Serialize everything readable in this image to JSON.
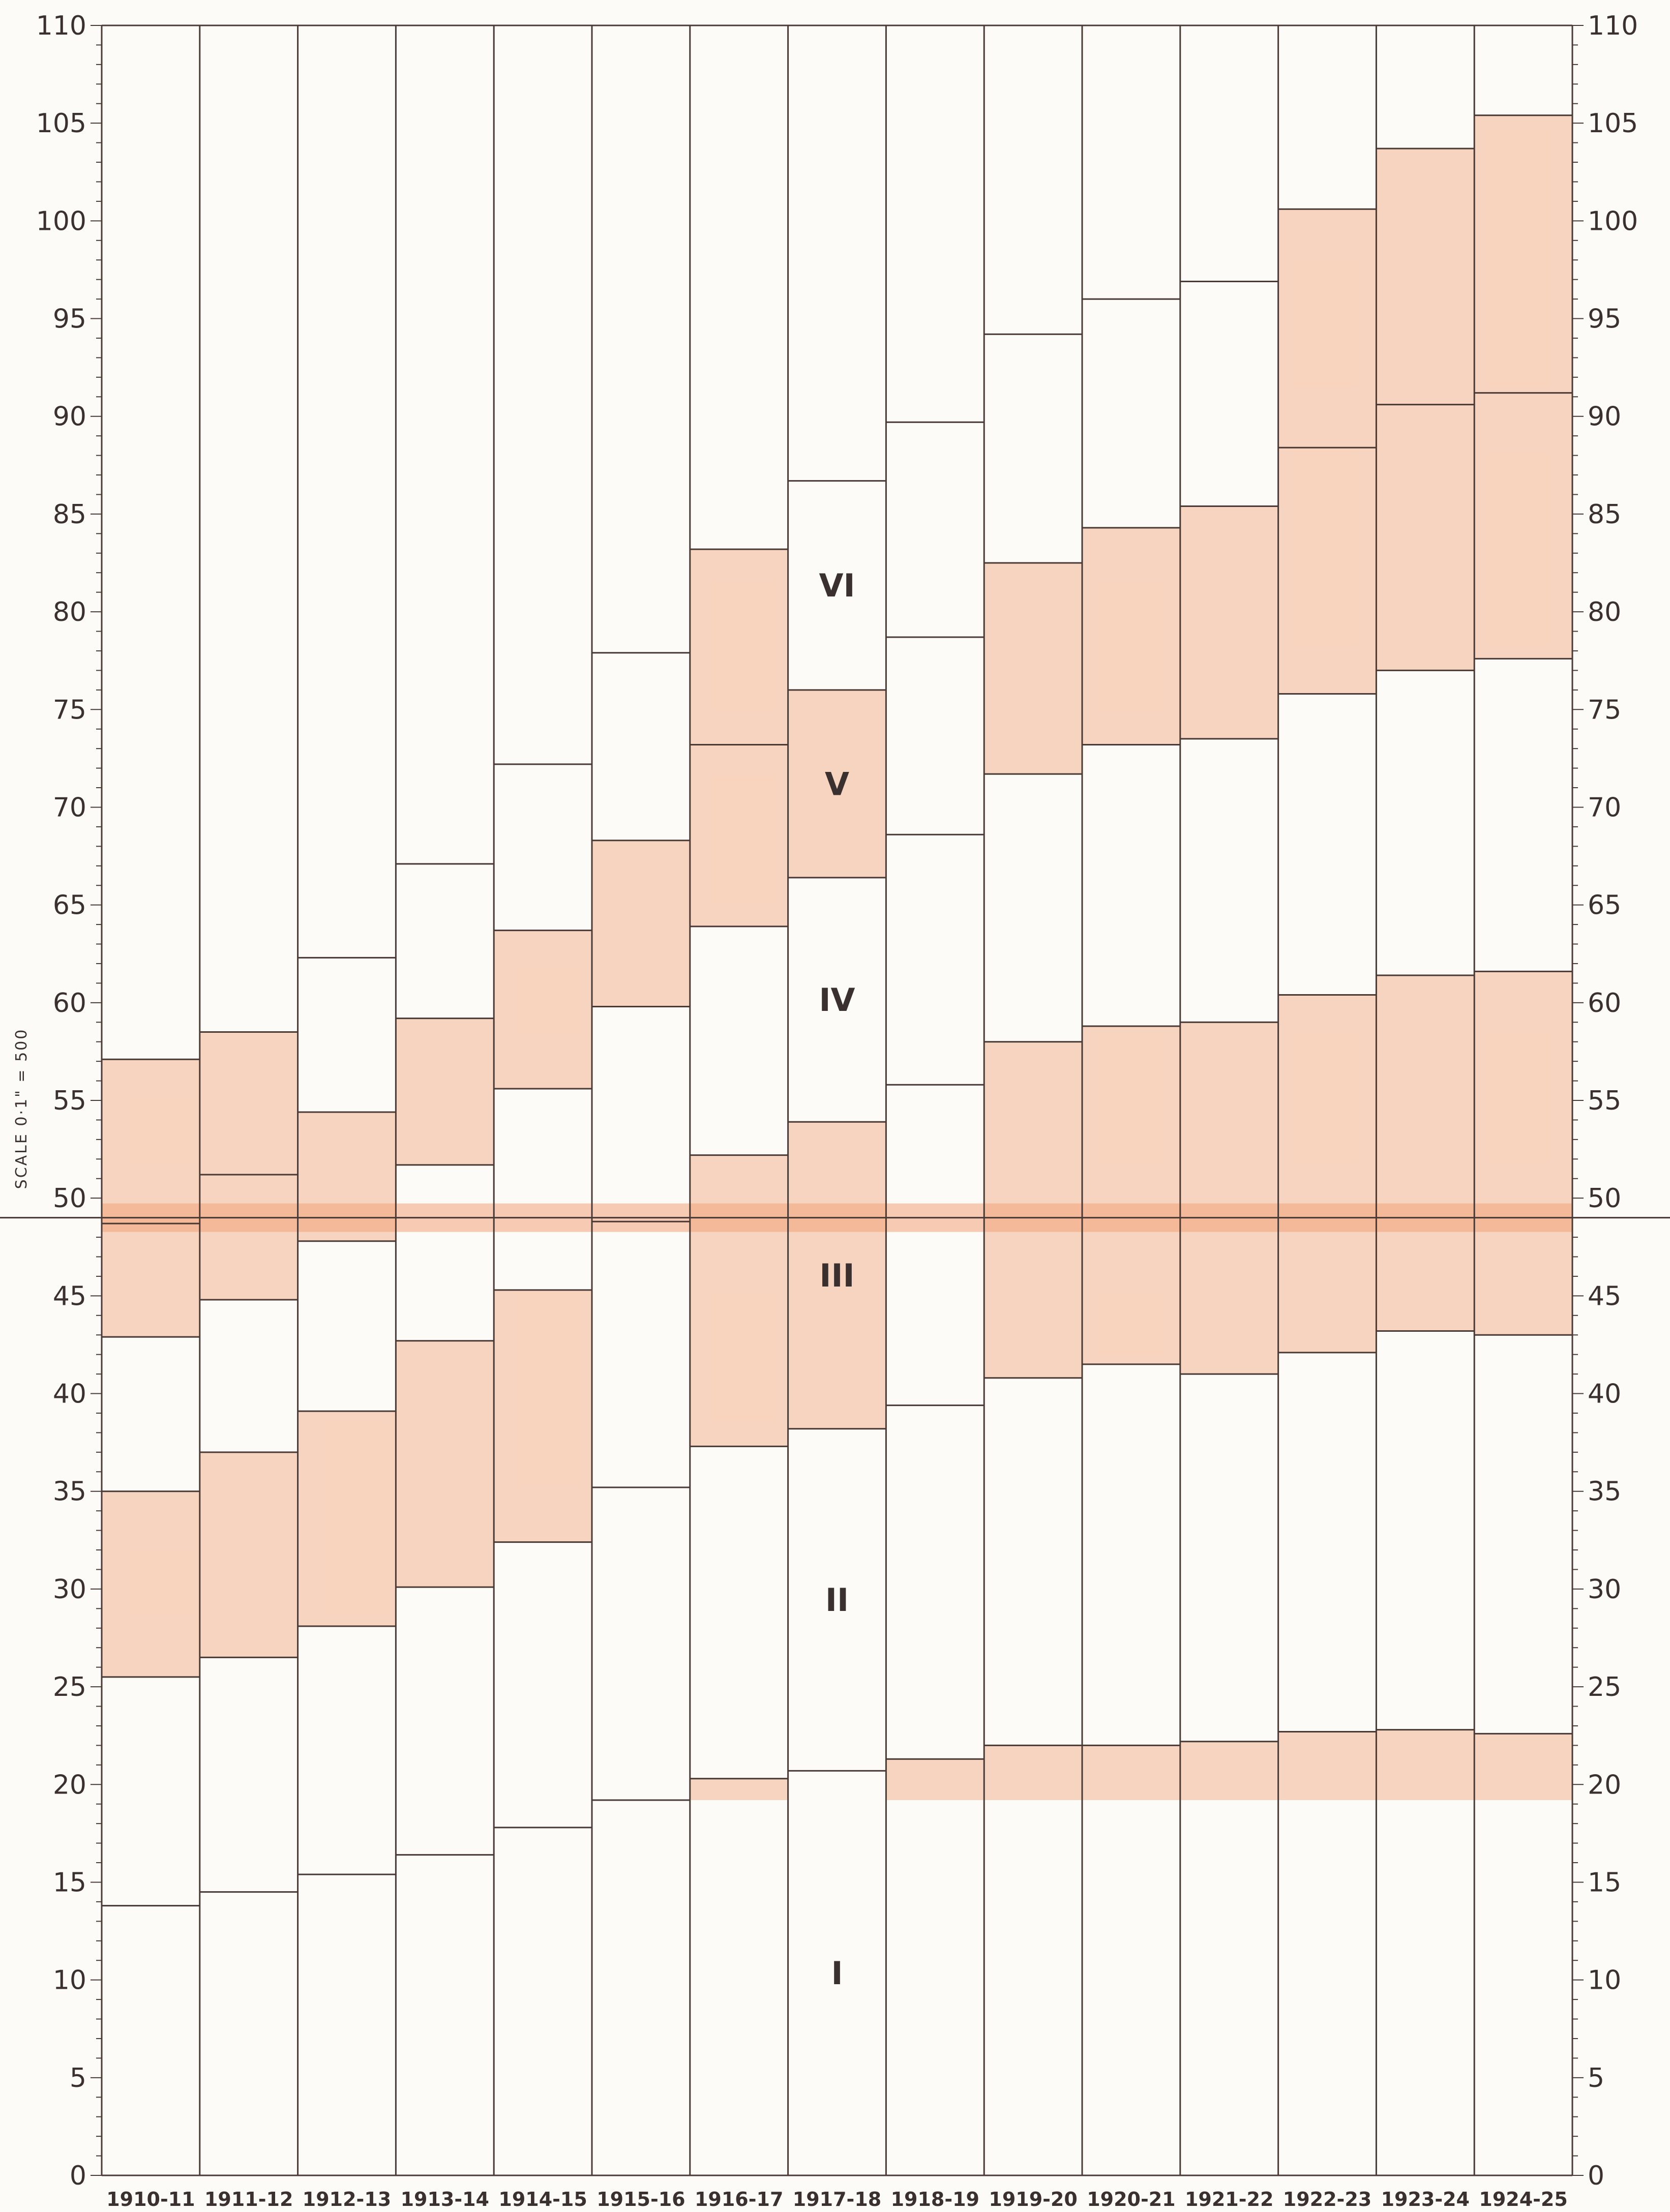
{
  "chart_data": {
    "type": "bar",
    "stacked": true,
    "title": "",
    "xlabel": "",
    "ylabel": "",
    "scale_note": "SCALE 0·1\" = 500",
    "ylim": [
      0,
      110
    ],
    "yticks": [
      0,
      5,
      10,
      15,
      20,
      25,
      30,
      35,
      40,
      45,
      50,
      55,
      60,
      65,
      70,
      75,
      80,
      85,
      90,
      95,
      100,
      105,
      110
    ],
    "ytick_labels": [
      "0",
      "5",
      "10",
      "15",
      "20",
      "25",
      "30",
      "35",
      "40",
      "45",
      "50",
      "55",
      "60",
      "65",
      "70",
      "75",
      "80",
      "85",
      "90",
      "95",
      "100",
      "105",
      "110"
    ],
    "grid": false,
    "categories": [
      "1910-11",
      "1911-12",
      "1912-13",
      "1913-14",
      "1914-15",
      "1915-16",
      "1916-17",
      "1917-18",
      "1918-19",
      "1919-20",
      "1920-21",
      "1921-22",
      "1922-23",
      "1923-24",
      "1924-25"
    ],
    "group_labels": [
      "I",
      "II",
      "III",
      "IV",
      "V",
      "VI"
    ],
    "boundaries": [
      [
        13.8,
        25.5,
        35.0,
        42.9,
        48.7,
        57.1
      ],
      [
        14.5,
        26.5,
        37.0,
        44.8,
        51.2,
        58.5
      ],
      [
        15.4,
        28.1,
        39.1,
        47.8,
        54.4,
        62.3
      ],
      [
        16.4,
        30.1,
        42.7,
        51.7,
        59.2,
        67.1
      ],
      [
        17.8,
        32.4,
        45.3,
        55.6,
        63.7,
        72.2
      ],
      [
        19.2,
        35.2,
        48.8,
        59.8,
        68.3,
        77.9
      ],
      [
        20.3,
        37.3,
        52.2,
        63.9,
        73.2,
        83.2
      ],
      [
        20.7,
        38.2,
        53.9,
        66.4,
        76.0,
        86.7
      ],
      [
        21.3,
        39.4,
        55.8,
        68.6,
        78.7,
        89.7
      ],
      [
        22.0,
        40.8,
        58.0,
        71.7,
        82.5,
        94.2
      ],
      [
        22.0,
        41.5,
        58.8,
        73.2,
        84.3,
        96.0
      ],
      [
        22.2,
        41.0,
        59.0,
        73.5,
        85.4,
        96.9
      ],
      [
        22.7,
        42.1,
        60.4,
        75.8,
        88.4,
        100.6
      ],
      [
        22.8,
        43.2,
        61.4,
        77.0,
        90.6,
        103.7
      ],
      [
        22.6,
        43.0,
        61.6,
        77.6,
        91.2,
        105.4
      ]
    ],
    "shaded_bands": [
      {
        "category": "1910-11",
        "from": 25.5,
        "to": 35.0
      },
      {
        "category": "1911-12",
        "from": 26.5,
        "to": 37.0
      },
      {
        "category": "1912-13",
        "from": 28.1,
        "to": 39.1
      },
      {
        "category": "1913-14",
        "from": 30.1,
        "to": 42.7
      },
      {
        "category": "1914-15",
        "from": 32.4,
        "to": 45.3
      },
      {
        "category": "1910-11",
        "from": 42.9,
        "to": 57.1
      },
      {
        "category": "1911-12",
        "from": 44.8,
        "to": 58.5
      },
      {
        "category": "1912-13",
        "from": 47.8,
        "to": 54.4
      },
      {
        "category": "1913-14",
        "from": 51.7,
        "to": 59.2
      },
      {
        "category": "1914-15",
        "from": 55.6,
        "to": 63.7
      },
      {
        "category": "1915-16",
        "from": 59.8,
        "to": 68.3
      },
      {
        "category": "1916-17",
        "from": 63.9,
        "to": 73.2
      },
      {
        "category": "1917-18",
        "from": 66.4,
        "to": 76.0
      },
      {
        "category": "1916-17",
        "from": 73.2,
        "to": 83.2
      },
      {
        "category": "1919-20",
        "from": 71.7,
        "to": 82.5
      },
      {
        "category": "1920-21",
        "from": 73.2,
        "to": 84.3
      },
      {
        "category": "1921-22",
        "from": 73.5,
        "to": 85.4
      },
      {
        "category": "1922-23",
        "from": 75.8,
        "to": 88.4
      },
      {
        "category": "1923-24",
        "from": 77.0,
        "to": 90.6
      },
      {
        "category": "1924-25",
        "from": 77.6,
        "to": 91.2
      },
      {
        "category": "1922-23",
        "from": 88.4,
        "to": 100.6
      },
      {
        "category": "1923-24",
        "from": 90.6,
        "to": 103.7
      },
      {
        "category": "1924-25",
        "from": 91.2,
        "to": 105.4
      },
      {
        "category": "1916-17",
        "from": 37.3,
        "to": 52.2
      },
      {
        "category": "1917-18",
        "from": 38.2,
        "to": 53.9
      },
      {
        "category": "1919-20",
        "from": 40.8,
        "to": 58.0
      },
      {
        "category": "1920-21",
        "from": 41.5,
        "to": 58.8
      },
      {
        "category": "1921-22",
        "from": 41.0,
        "to": 59.0
      },
      {
        "category": "1922-23",
        "from": 42.1,
        "to": 60.4
      },
      {
        "category": "1923-24",
        "from": 43.2,
        "to": 61.4
      },
      {
        "category": "1924-25",
        "from": 43.0,
        "to": 61.6
      },
      {
        "category": "1916-17",
        "from": 19.2,
        "to": 20.3
      },
      {
        "category": "1918-19",
        "from": 19.2,
        "to": 21.3
      },
      {
        "category": "1919-20",
        "from": 19.2,
        "to": 22.0
      },
      {
        "category": "1920-21",
        "from": 19.2,
        "to": 22.0
      },
      {
        "category": "1921-22",
        "from": 19.2,
        "to": 22.2
      },
      {
        "category": "1922-23",
        "from": 19.2,
        "to": 22.7
      },
      {
        "category": "1923-24",
        "from": 19.2,
        "to": 22.8
      },
      {
        "category": "1924-25",
        "from": 19.2,
        "to": 22.6
      }
    ],
    "reference_line": 49.0,
    "colors": {
      "line": "#4a3a36",
      "shade": "#f3b48f",
      "shade_heavy": "#f0a27a",
      "paper": "#fdfbf8"
    }
  }
}
